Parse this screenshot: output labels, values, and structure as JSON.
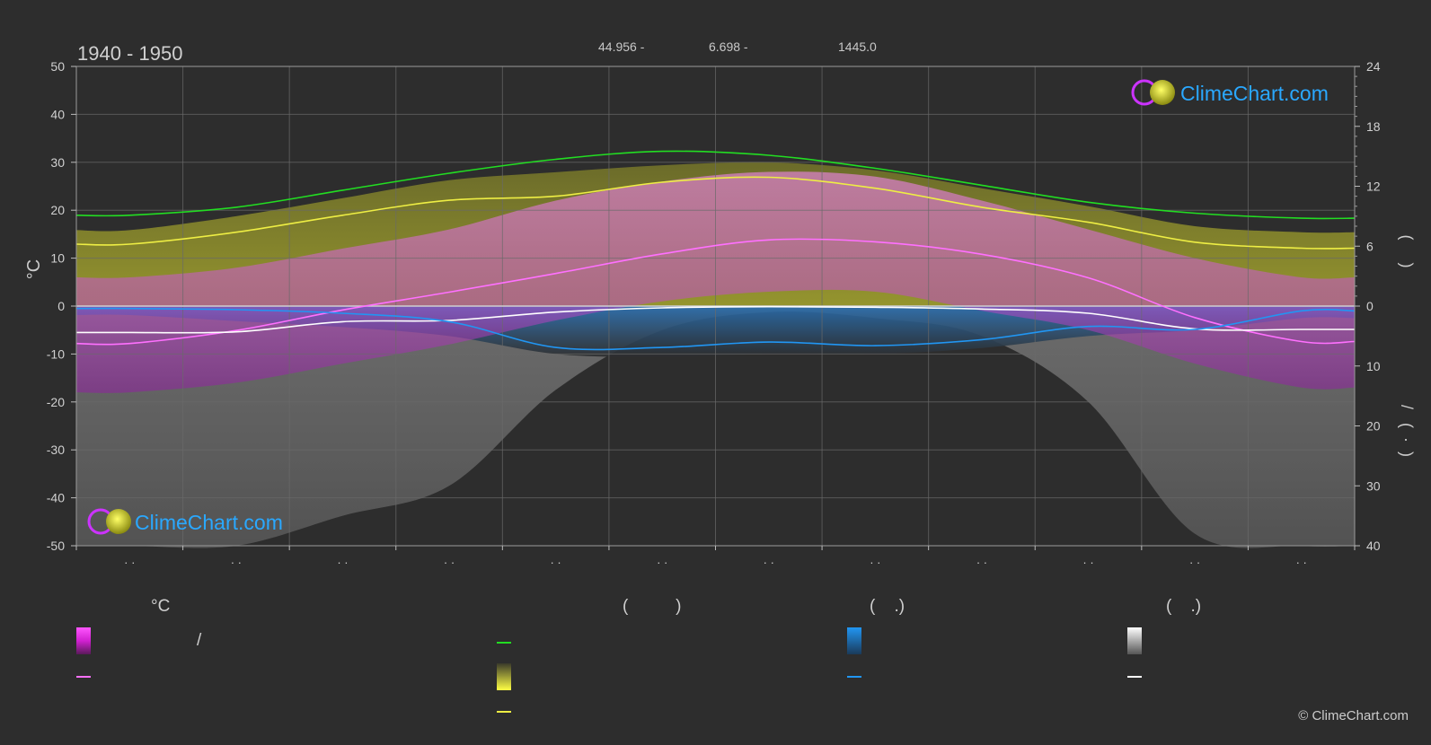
{
  "header": {
    "period": "1940 - 1950",
    "latitude": "44.956 -",
    "longitude": "6.698 -",
    "elevation": "1445.0"
  },
  "brand": {
    "text": "ClimeChart.com",
    "copyright": "© ClimeChart.com"
  },
  "legend": {
    "temp_unit": "°C",
    "col2_header": "(          )",
    "col3_header": "(    .)",
    "col4_header": "(    .)",
    "slash": "/",
    "colors": {
      "temp_range": "#e040e0",
      "temp_mean": "#ff70ff",
      "daylight": "#22dd22",
      "sunshine_range": "#dddd33",
      "sunshine_mean": "#eeee44",
      "rain_range": "#1e88e5",
      "rain_mean": "#2196f3",
      "snow_range": "#dddddd",
      "snow_mean": "#ffffff"
    }
  },
  "chart_data": {
    "type": "line",
    "x_count": 12,
    "month_labels": [
      "· ·",
      "· ·",
      "· ·",
      "· ·",
      "· ·",
      "· ·",
      "· ·",
      "· ·",
      "· ·",
      "· ·",
      "· ·",
      "· ·"
    ],
    "left_axis": {
      "label": "°C",
      "ylim": [
        -50,
        50
      ],
      "ticks": [
        50,
        40,
        30,
        20,
        10,
        0,
        -10,
        -20,
        -30,
        -40,
        -50
      ]
    },
    "right_axis_top": {
      "label": "(     )",
      "ylim": [
        0,
        24
      ],
      "ticks": [
        24,
        18,
        12,
        6,
        0
      ]
    },
    "right_axis_bottom": {
      "label": "/   (  ·  )",
      "ylim": [
        0,
        40
      ],
      "ticks": [
        10,
        20,
        30,
        40
      ]
    },
    "grid": true,
    "series": [
      {
        "key": "daylight",
        "axis": "hours",
        "values": [
          9.1,
          9.9,
          11.6,
          13.3,
          14.7,
          15.5,
          15.1,
          13.8,
          12.1,
          10.4,
          9.3,
          8.8
        ]
      },
      {
        "key": "sunshine_mean",
        "axis": "hours",
        "values": [
          6.2,
          7.4,
          9.1,
          10.6,
          11.0,
          12.4,
          12.9,
          11.8,
          9.9,
          8.4,
          6.4,
          5.8
        ]
      },
      {
        "key": "temp_mean",
        "axis": "celsius",
        "values": [
          -7.8,
          -5.1,
          -0.8,
          2.9,
          6.8,
          10.9,
          13.8,
          13.4,
          10.8,
          5.9,
          -2.4,
          -7.4
        ]
      },
      {
        "key": "snow_mean",
        "axis": "mm",
        "values": [
          4.4,
          4.3,
          2.6,
          2.4,
          1.0,
          0.3,
          0.1,
          0.2,
          0.5,
          1.2,
          3.8,
          3.9
        ]
      },
      {
        "key": "rain_mean",
        "axis": "mm",
        "values": [
          0.4,
          0.6,
          1.2,
          2.6,
          6.9,
          6.9,
          6.0,
          6.6,
          5.6,
          3.4,
          3.9,
          0.8
        ]
      }
    ],
    "bands": {
      "sunshine_top_hours": [
        7.6,
        9.0,
        10.8,
        12.6,
        13.4,
        14.1,
        14.4,
        13.6,
        11.8,
        10.0,
        8.0,
        7.4
      ],
      "temp_max_c": [
        6,
        8,
        12,
        16,
        22,
        26,
        28,
        27,
        22,
        16,
        10,
        6
      ],
      "temp_min_c": [
        -18,
        -16,
        -12,
        -8,
        -3,
        1,
        3,
        3,
        -1,
        -5,
        -12,
        -17
      ],
      "rain_depth_mm": [
        1.5,
        2.5,
        3.5,
        5.0,
        8.0,
        8.5,
        8.0,
        8.0,
        7.0,
        5.0,
        4.0,
        2.0
      ],
      "snow_depth_mm": [
        40,
        40,
        35,
        30,
        14,
        4,
        1,
        2,
        5,
        16,
        38,
        40
      ]
    }
  }
}
